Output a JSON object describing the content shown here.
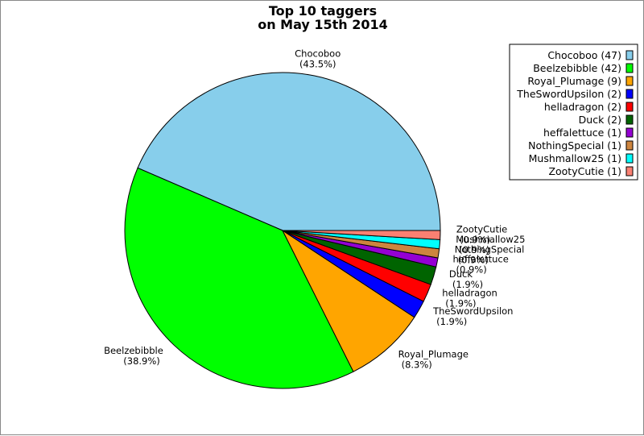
{
  "chart_data": {
    "type": "pie",
    "title": [
      "Top 10 taggers",
      "on May 15th 2014"
    ],
    "legend_position": "top-right",
    "slices": [
      {
        "name": "Chocoboo",
        "value": 47,
        "percent": "(43.5%)",
        "legend": "Chocoboo (47)",
        "color": "#87CEEB"
      },
      {
        "name": "Beelzebibble",
        "value": 42,
        "percent": "(38.9%)",
        "legend": "Beelzebibble (42)",
        "color": "#00FF00"
      },
      {
        "name": "Royal_Plumage",
        "value": 9,
        "percent": "(8.3%)",
        "legend": "Royal_Plumage (9)",
        "color": "#FFA500"
      },
      {
        "name": "TheSwordUpsilon",
        "value": 2,
        "percent": "(1.9%)",
        "legend": "TheSwordUpsilon (2)",
        "color": "#0000FF"
      },
      {
        "name": "helladragon",
        "value": 2,
        "percent": "(1.9%)",
        "legend": "helladragon (2)",
        "color": "#FF0000"
      },
      {
        "name": "Duck",
        "value": 2,
        "percent": "(1.9%)",
        "legend": "Duck (2)",
        "color": "#006400"
      },
      {
        "name": "heffalettuce",
        "value": 1,
        "percent": "(0.9%)",
        "legend": "heffalettuce (1)",
        "color": "#9400D3"
      },
      {
        "name": "NothingSpecial",
        "value": 1,
        "percent": "(0.9%)",
        "legend": "NothingSpecial (1)",
        "color": "#CD853F"
      },
      {
        "name": "Mushmallow25",
        "value": 1,
        "percent": "(0.9%)",
        "legend": "Mushmallow25 (1)",
        "color": "#00FFFF"
      },
      {
        "name": "ZootyCutie",
        "value": 1,
        "percent": "(0.9%)",
        "legend": "ZootyCutie (1)",
        "color": "#FA8072"
      }
    ]
  }
}
